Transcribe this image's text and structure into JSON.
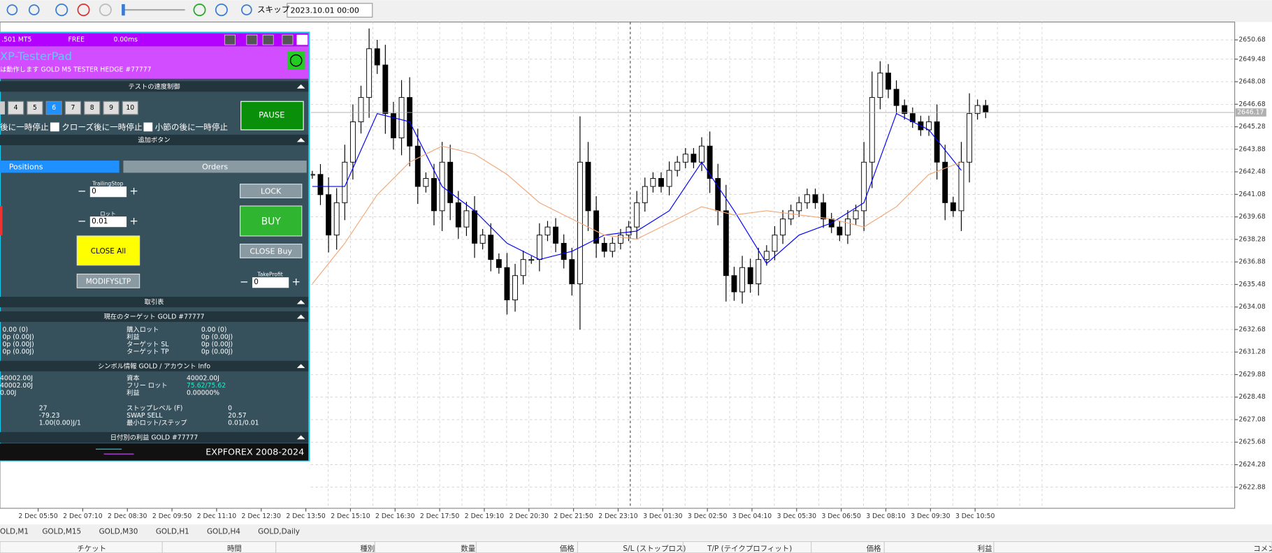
{
  "toolbar": {
    "skip_label": "スキップ",
    "date": "2023.10.01 00:00"
  },
  "chart_data": {
    "type": "candlestick",
    "ylim": [
      2621.57,
      2651.79
    ],
    "yticks": [
      2650.68,
      2649.48,
      2648.08,
      2646.68,
      2645.28,
      2643.88,
      2642.48,
      2641.08,
      2639.68,
      2638.28,
      2636.88,
      2635.48,
      2634.08,
      2632.68,
      2631.28,
      2629.88,
      2628.48,
      2627.08,
      2625.68,
      2624.28,
      2622.88
    ],
    "x_labels": [
      "2 Dec 05:50",
      "2 Dec 07:10",
      "2 Dec 08:30",
      "2 Dec 09:50",
      "2 Dec 11:10",
      "2 Dec 12:30",
      "2 Dec 13:50",
      "2 Dec 15:10",
      "2 Dec 16:30",
      "2 Dec 17:50",
      "2 Dec 19:10",
      "2 Dec 20:30",
      "2 Dec 21:50",
      "2 Dec 23:10",
      "3 Dec 01:30",
      "3 Dec 02:50",
      "3 Dec 04:10",
      "3 Dec 05:30",
      "3 Dec 06:50",
      "3 Dec 08:10",
      "3 Dec 09:30",
      "3 Dec 10:50"
    ],
    "values": [
      2642.32,
      2641.06,
      2638.55,
      2640.56,
      2643.08,
      2645.59,
      2647.1,
      2650.13,
      2649.12,
      2646.1,
      2644.59,
      2647.1,
      2644.08,
      2641.57,
      2642.07,
      2640.06,
      2643.08,
      2640.56,
      2639.05,
      2640.06,
      2638.04,
      2638.55,
      2637.03,
      2636.53,
      2634.52,
      2636.03,
      2637.03,
      2637.03,
      2638.55,
      2639.05,
      2638.04,
      2637.03,
      2635.52,
      2643.08,
      2640.06,
      2638.04,
      2637.54,
      2638.04,
      2638.55,
      2639.05,
      2640.56,
      2641.57,
      2642.07,
      2641.57,
      2642.57,
      2643.08,
      2643.58,
      2643.08,
      2644.08,
      2642.07,
      2640.06,
      2636.03,
      2635.02,
      2636.53,
      2635.52,
      2637.03,
      2637.54,
      2638.55,
      2639.55,
      2640.06,
      2640.56,
      2641.06,
      2640.56,
      2639.55,
      2639.05,
      2638.55,
      2639.55,
      2640.06,
      2643.08,
      2647.1,
      2648.62,
      2647.61,
      2646.6,
      2646.1,
      2645.59,
      2645.09,
      2645.59,
      2643.08,
      2640.56,
      2640.06,
      2643.08,
      2646.1,
      2646.6,
      2646.17
    ],
    "series": [
      {
        "color": "#0000ff",
        "values": [
          2641.57,
          2641.57,
          2646.1,
          2645.59,
          2641.57,
          2640.06,
          2638.04,
          2637.03,
          2637.54,
          2638.55,
          2638.8,
          2640.06,
          2643.08,
          2640.06,
          2636.78,
          2638.55,
          2639.3,
          2640.56,
          2646.1,
          2645.09,
          2642.57
        ]
      },
      {
        "color": "#f0a878",
        "values": [
          2635.52,
          2638.04,
          2641.06,
          2643.08,
          2644.08,
          2643.58,
          2642.32,
          2640.56,
          2639.55,
          2638.55,
          2638.3,
          2639.3,
          2640.31,
          2639.8,
          2640.06,
          2639.8,
          2639.55,
          2639.05,
          2640.31,
          2642.32,
          2643.08
        ]
      }
    ],
    "last_price": 2646.17,
    "grid": true
  },
  "panel": {
    "header": [
      ".501 MT5",
      "FREE",
      "0.00ms"
    ],
    "title": "XP-TesterPad",
    "subtitle": "は動作します GOLD M5 TESTER HEDGE  #77777",
    "speed_section": "テストの速度制御",
    "speed_buttons": [
      "4",
      "5",
      "6",
      "7",
      "8",
      "9",
      "10"
    ],
    "pause": "PAUSE",
    "checkboxes": [
      "後に一時停止",
      "クローズ後に一時停止",
      "小節の後に一時停止"
    ],
    "extra_section": "追加ボタン",
    "tabs": [
      "Positions",
      "Orders"
    ],
    "trailing_label": "TrailingStop",
    "trailing_value": "0",
    "lock": "LOCK",
    "lot_label": "ロット",
    "lot_value": "0.01",
    "buy": "BUY",
    "close_all": "CLOSE All",
    "close_buy": "CLOSE Buy",
    "tp_label": "TakeProfit",
    "tp_value": "0",
    "modify": "MODIFYSLTP",
    "trade_section": "取引表",
    "target_section": "現在のターゲット GOLD  #77777",
    "target_rows": [
      [
        "0.00 (0)",
        "購入ロット",
        "0.00 (0)"
      ],
      [
        "0p (0.00J)",
        "利益",
        "0p (0.00J)"
      ],
      [
        "0p (0.00J)",
        "ターゲット SL",
        "0p (0.00J)"
      ],
      [
        "0p (0.00J)",
        "ターゲット TP",
        "0p (0.00J)"
      ]
    ],
    "symbol_section": "シンボル情報 GOLD / アカウント Info",
    "account_rows": [
      [
        "40002.00J",
        "資本",
        "40002.00J"
      ],
      [
        "40002.00J",
        "フリー ロット",
        "75.62/75.62"
      ],
      [
        "0.00J",
        "利益",
        "0.00000%"
      ]
    ],
    "symbol_rows": [
      [
        "27",
        "ストップレベル (F)",
        "0"
      ],
      [
        "-79.23",
        "SWAP SELL",
        "20.57"
      ],
      [
        "1.00(0.00)J/1",
        "最小ロット/ステップ",
        "0.01/0.01"
      ]
    ],
    "daily_section": "日付別の利益 GOLD  #77777",
    "footer": "EXPFOREX 2008-2024"
  },
  "tabs": [
    "OLD,M1",
    "GOLD,M15",
    "GOLD,M30",
    "GOLD,H1",
    "GOLD,H4",
    "GOLD,Daily"
  ],
  "columns": [
    "チケット",
    "時間",
    "種別",
    "数量",
    "価格",
    "S/L (ストップロス)",
    "T/P (テイクプロフィット)",
    "価格",
    "利益",
    "コメント"
  ]
}
